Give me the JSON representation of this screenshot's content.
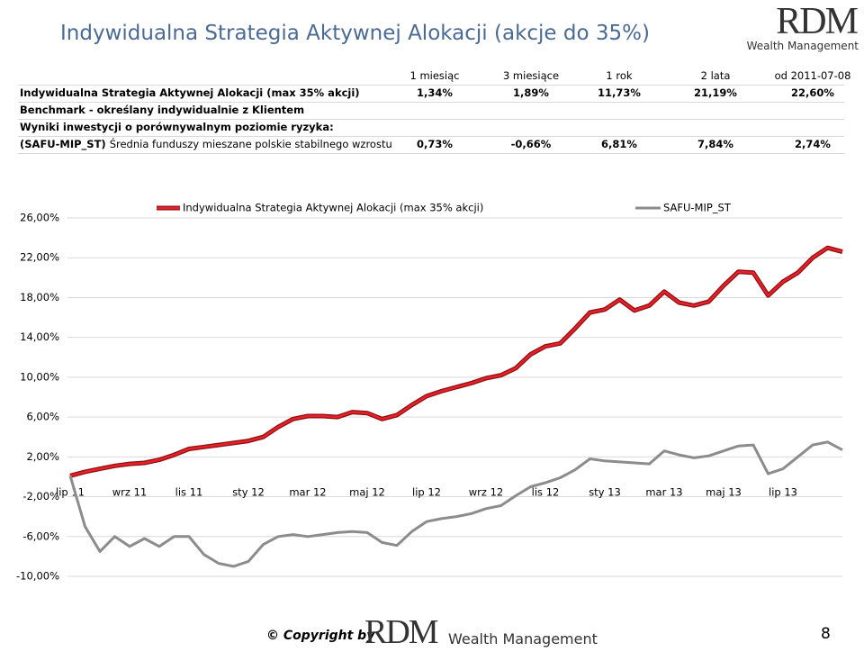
{
  "header": {
    "title": "Indywidualna Strategia Aktywnej Alokacji (akcje do 35%)",
    "logo": "RDM",
    "logo_sub": "Wealth Management"
  },
  "table": {
    "columns": [
      "1 miesiąc",
      "3 miesiące",
      "1 rok",
      "2 lata",
      "od 2011-07-08"
    ],
    "rows": [
      {
        "label": "Indywidualna Strategia Aktywnej Alokacji (max 35% akcji)",
        "values": [
          "1,34%",
          "1,89%",
          "11,73%",
          "21,19%",
          "22,60%"
        ]
      },
      {
        "label": "Benchmark - określany indywidualnie z Klientem"
      },
      {
        "label": "Wyniki inwestycji o porównywalnym poziomie ryzyka:"
      },
      {
        "label": "(SAFU-MIP_ST)",
        "label_rest": "Średnia funduszy mieszane polskie stabilnego wzrostu",
        "values": [
          "0,73%",
          "-0,66%",
          "6,81%",
          "7,84%",
          "2,74%"
        ]
      }
    ]
  },
  "chart_data": {
    "type": "line",
    "categories": [
      "lip 11",
      null,
      null,
      null,
      "wrz 11",
      null,
      null,
      null,
      "lis 11",
      null,
      null,
      null,
      "sty 12",
      null,
      null,
      null,
      "mar 12",
      null,
      null,
      null,
      "maj 12",
      null,
      null,
      null,
      "lip 12",
      null,
      null,
      null,
      "wrz 12",
      null,
      null,
      null,
      "lis 12",
      null,
      null,
      null,
      "sty 13",
      null,
      null,
      null,
      "mar 13",
      null,
      null,
      null,
      "maj 13",
      null,
      null,
      null,
      "lip 13",
      null,
      null,
      null,
      null
    ],
    "series": [
      {
        "name": "Indywidualna Strategia Aktywnej Alokacji (max 35% akcji)",
        "color": "#e8202a",
        "values": [
          0.1,
          0.5,
          0.8,
          1.1,
          1.3,
          1.4,
          1.7,
          2.2,
          2.8,
          3.0,
          3.2,
          3.4,
          3.6,
          4.0,
          5.0,
          5.8,
          6.1,
          6.1,
          6.0,
          6.5,
          6.4,
          5.8,
          6.2,
          7.2,
          8.1,
          8.6,
          9.0,
          9.4,
          9.9,
          10.2,
          10.9,
          12.3,
          13.1,
          13.4,
          14.9,
          16.5,
          16.8,
          17.8,
          16.7,
          17.2,
          18.6,
          17.5,
          17.2,
          17.6,
          19.2,
          20.6,
          20.5,
          18.2,
          19.6,
          20.5,
          22.0,
          23.0,
          22.6
        ]
      },
      {
        "name": "SAFU-MIP_ST",
        "color": "#8c8c8c",
        "values": [
          0.1,
          -5.0,
          -7.5,
          -6.0,
          -7.0,
          -6.2,
          -7.0,
          -6.0,
          -6.0,
          -7.8,
          -8.7,
          -9.0,
          -8.5,
          -6.8,
          -6.0,
          -5.8,
          -6.0,
          -5.8,
          -5.6,
          -5.5,
          -5.6,
          -6.6,
          -6.9,
          -5.5,
          -4.5,
          -4.2,
          -4.0,
          -3.7,
          -3.2,
          -2.9,
          -1.9,
          -1.0,
          -0.6,
          -0.1,
          0.7,
          1.8,
          1.6,
          1.5,
          1.4,
          1.3,
          2.6,
          2.2,
          1.9,
          2.1,
          2.6,
          3.1,
          3.2,
          0.3,
          0.8,
          2.0,
          3.2,
          3.5,
          2.7
        ]
      }
    ],
    "ylim": [
      -10,
      26
    ],
    "yticks": [
      {
        "value": 26,
        "label": "26,00%"
      },
      {
        "value": 22,
        "label": "22,00%"
      },
      {
        "value": 18,
        "label": "18,00%"
      },
      {
        "value": 14,
        "label": "14,00%"
      },
      {
        "value": 10,
        "label": "10,00%"
      },
      {
        "value": 6,
        "label": "6,00%"
      },
      {
        "value": 2,
        "label": "2,00%"
      },
      {
        "value": -2,
        "label": "-2,00%"
      },
      {
        "value": -6,
        "label": "-6,00%"
      },
      {
        "value": -10,
        "label": "-10,00%"
      }
    ],
    "grid": true,
    "legend": "top"
  },
  "footer": {
    "copyright": "© Copyright by",
    "logo": "RDM",
    "logo_sub": "Wealth Management",
    "page": "8"
  }
}
